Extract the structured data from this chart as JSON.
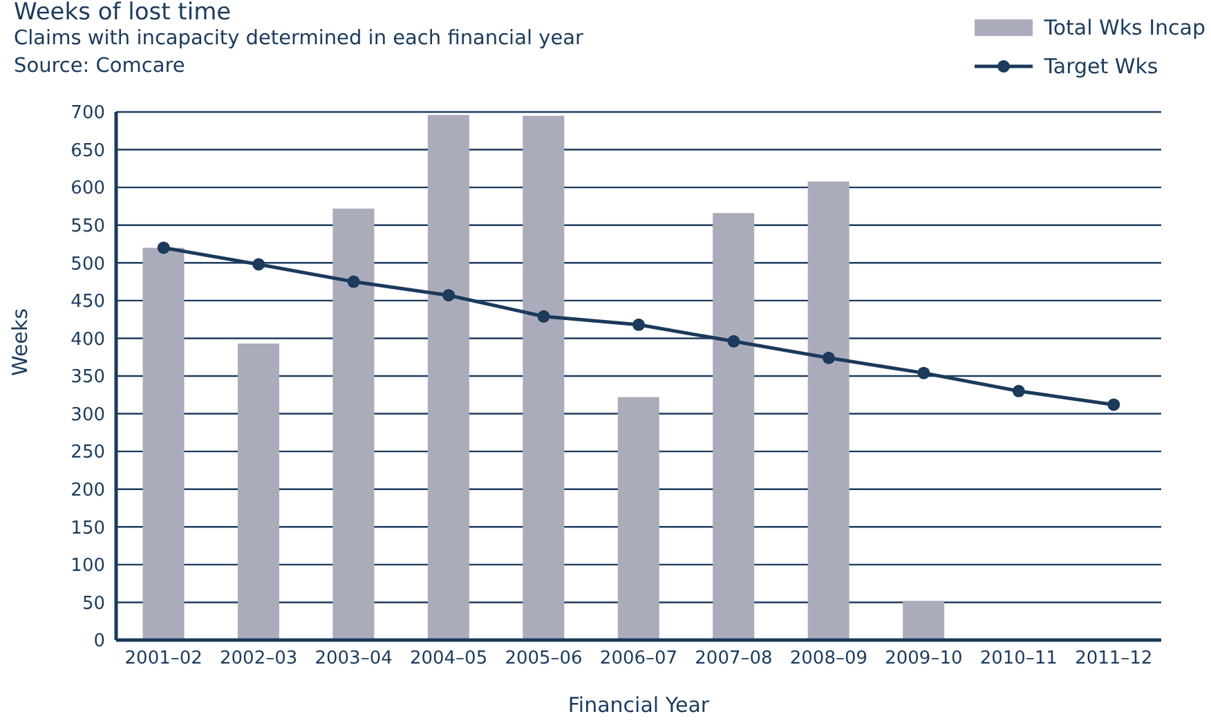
{
  "chart_data": {
    "type": "bar",
    "title": "Weeks of lost time",
    "subtitle": "Claims with incapacity determined in each financial year",
    "annotations": [
      "Source: Comcare"
    ],
    "xlabel": "Financial Year",
    "ylabel": "Weeks",
    "categories": [
      "2001–02",
      "2002–03",
      "2003–04",
      "2004–05",
      "2005–06",
      "2006–07",
      "2007–08",
      "2008–09",
      "2009–10",
      "2010–11",
      "2011–12"
    ],
    "series": [
      {
        "name": "Total Wks Incap",
        "color": "#abacbb",
        "values": [
          520,
          393,
          572,
          696,
          695,
          322,
          566,
          608,
          52,
          null,
          null
        ]
      },
      {
        "name": "Target Wks",
        "type": "line",
        "color": "#1b3a5c",
        "marker": "circle",
        "values": [
          520,
          498,
          475,
          457,
          429,
          418,
          396,
          374,
          354,
          330,
          312
        ]
      }
    ],
    "ylim": [
      0,
      700
    ],
    "yticks": [
      0,
      50,
      100,
      150,
      200,
      250,
      300,
      350,
      400,
      450,
      500,
      550,
      600,
      650,
      700
    ],
    "grid": "y",
    "legend": "top right"
  }
}
